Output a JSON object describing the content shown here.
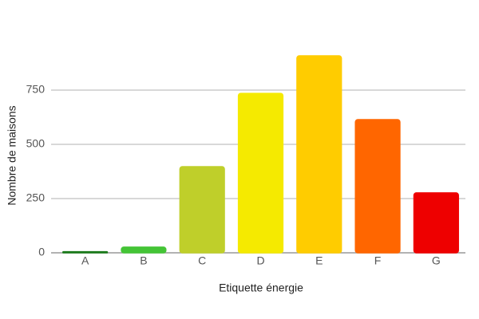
{
  "chart_data": {
    "type": "bar",
    "x_label": "Etiquette énergie",
    "y_label": "Nombre de maisons",
    "categories": [
      "A",
      "B",
      "C",
      "D",
      "E",
      "F",
      "G"
    ],
    "values": [
      5,
      26,
      397,
      735,
      908,
      614,
      276
    ],
    "colors": [
      "#1a7a1a",
      "#44c436",
      "#bfcf2a",
      "#f5ea00",
      "#ffcc00",
      "#ff6600",
      "#ee0000"
    ],
    "ylim": [
      0,
      1000
    ],
    "yticks": [
      0,
      250,
      500,
      750
    ],
    "grid": true
  }
}
